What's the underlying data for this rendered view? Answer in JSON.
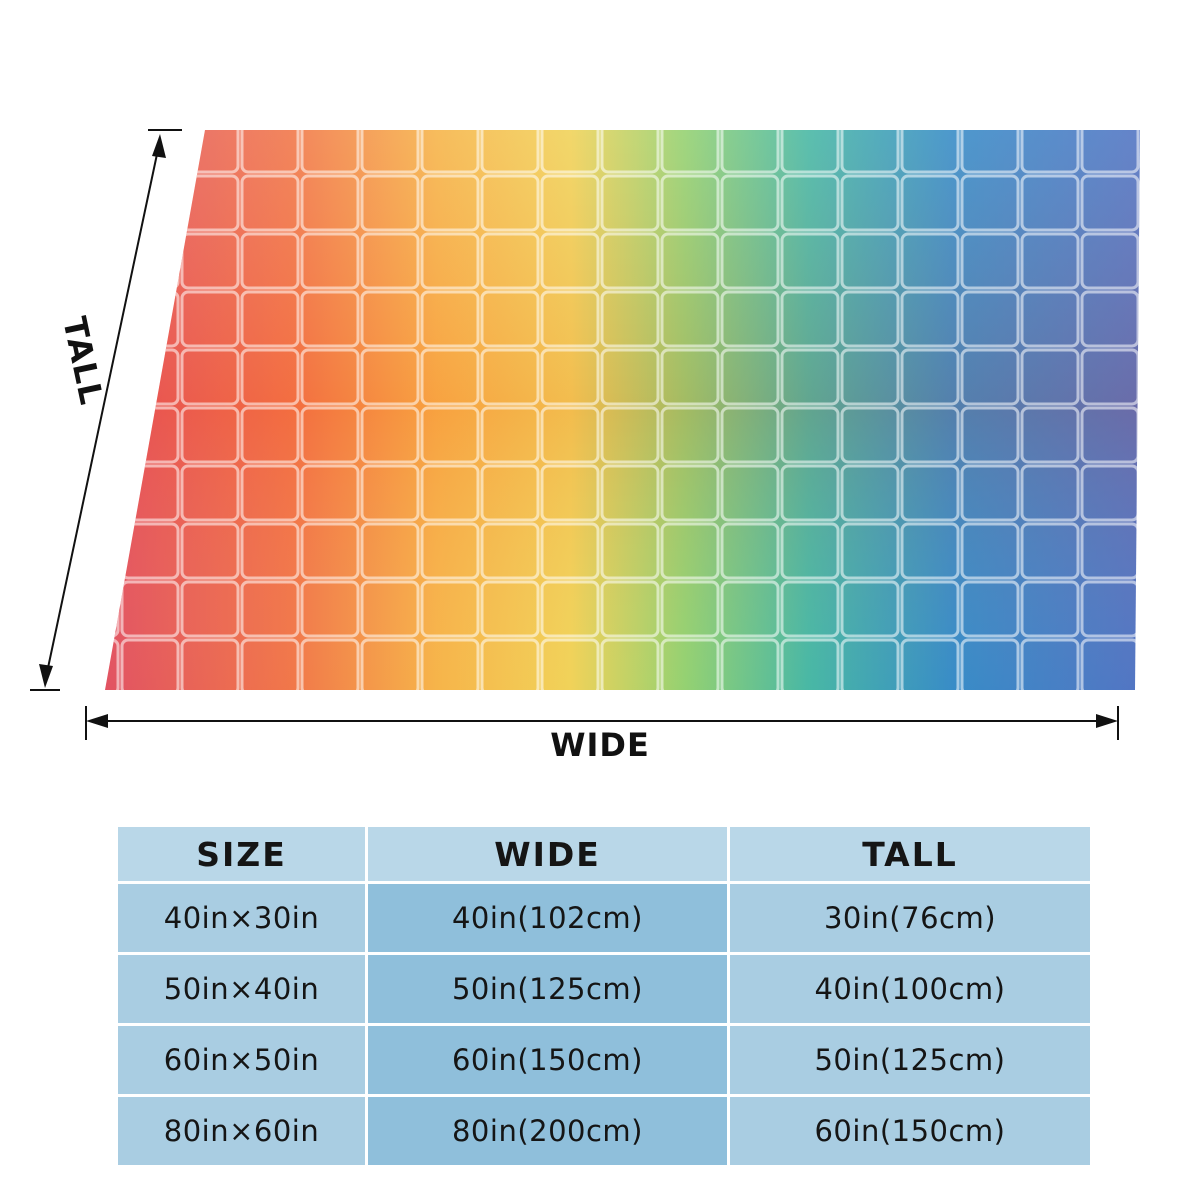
{
  "labels": {
    "wide": "WIDE",
    "tall": "TALL"
  },
  "table": {
    "headers": [
      "SIZE",
      "WIDE",
      "TALL"
    ],
    "rows": [
      [
        "40in×30in",
        "40in(102cm)",
        "30in(76cm)"
      ],
      [
        "50in×40in",
        "50in(125cm)",
        "40in(100cm)"
      ],
      [
        "60in×50in",
        "60in(150cm)",
        "50in(125cm)"
      ],
      [
        "80in×60in",
        "80in(200cm)",
        "60in(150cm)"
      ]
    ]
  },
  "colors": {
    "header_bg": "#b9d7e8",
    "cell_light": "#a9cde2",
    "cell_dark": "#8fbfdb",
    "text": "#151515"
  }
}
